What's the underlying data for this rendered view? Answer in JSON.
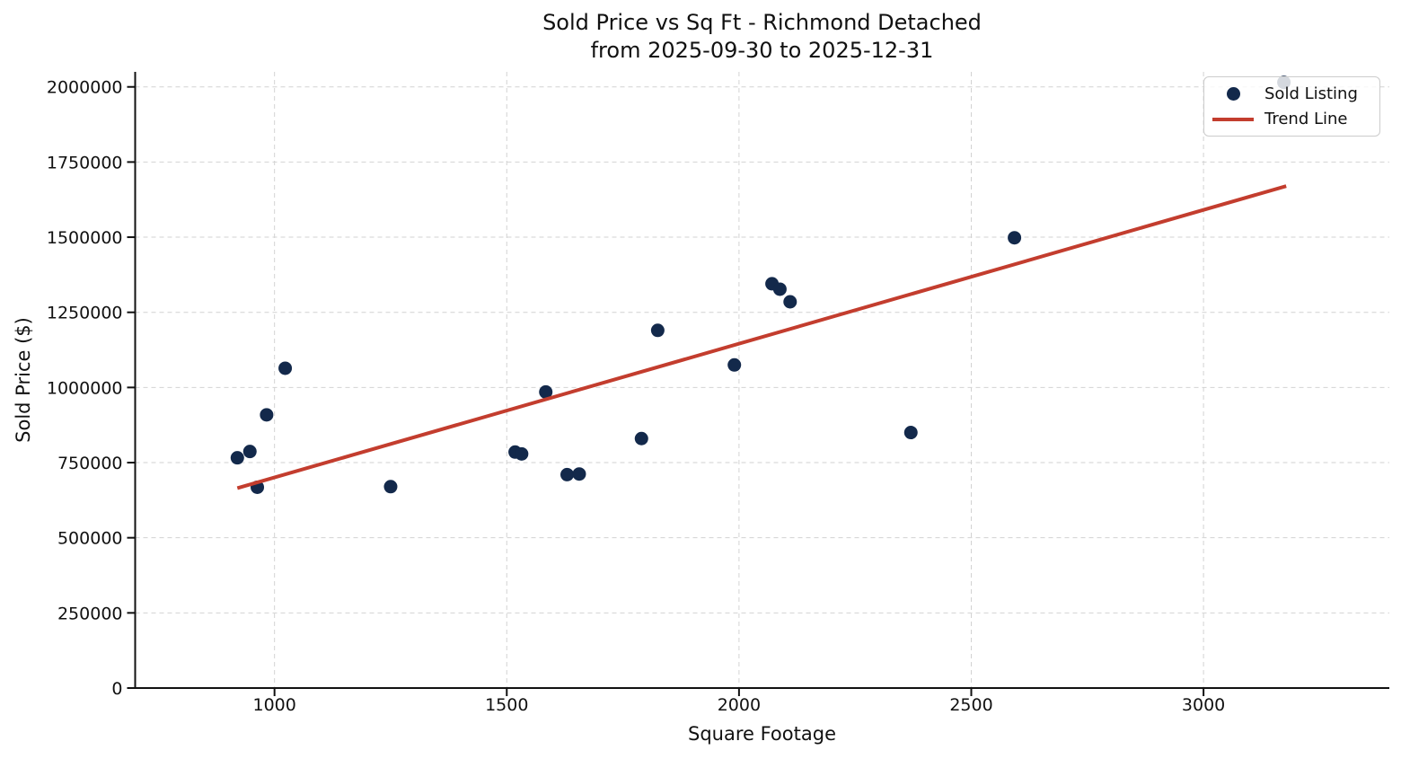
{
  "chart_data": {
    "type": "scatter",
    "title": "Sold Price vs Sq Ft - Richmond Detached",
    "subtitle": "from 2025-09-30 to 2025-12-31",
    "xlabel": "Square Footage",
    "ylabel": "Sold Price ($)",
    "xlim": [
      700,
      3400
    ],
    "ylim": [
      0,
      2050000
    ],
    "x_ticks": [
      1000,
      1500,
      2000,
      2500,
      3000
    ],
    "y_ticks": [
      0,
      250000,
      500000,
      750000,
      1000000,
      1250000,
      1500000,
      1750000,
      2000000
    ],
    "grid": true,
    "grid_style": "dashed",
    "legend_position": "upper right",
    "legend": {
      "entries": [
        {
          "label": "Sold Listing",
          "marker": "point"
        },
        {
          "label": "Trend Line",
          "marker": "line"
        }
      ]
    },
    "series": [
      {
        "name": "Sold Listing",
        "type": "scatter",
        "color": "#13294b",
        "marker_radius": 7.5,
        "points": [
          [
            920,
            766000
          ],
          [
            947,
            787000
          ],
          [
            963,
            668000
          ],
          [
            983,
            909000
          ],
          [
            1023,
            1064000
          ],
          [
            1250,
            670000
          ],
          [
            1518,
            785000
          ],
          [
            1532,
            779000
          ],
          [
            1584,
            985000
          ],
          [
            1630,
            710000
          ],
          [
            1656,
            712000
          ],
          [
            1790,
            830000
          ],
          [
            1825,
            1190000
          ],
          [
            1990,
            1075000
          ],
          [
            2071,
            1345000
          ],
          [
            2088,
            1327000
          ],
          [
            2110,
            1285000
          ],
          [
            2370,
            850000
          ],
          [
            2593,
            1498000
          ],
          [
            3173,
            2015000
          ]
        ]
      },
      {
        "name": "Trend Line",
        "type": "line",
        "color": "#c33d2e",
        "line_width": 4,
        "points": [
          [
            920,
            665000
          ],
          [
            3178,
            1670000
          ]
        ]
      }
    ],
    "colors": {
      "point": "#13294b",
      "trend": "#c33d2e",
      "grid": "#d2d2d2",
      "axis": "#111111",
      "background": "#ffffff"
    }
  }
}
